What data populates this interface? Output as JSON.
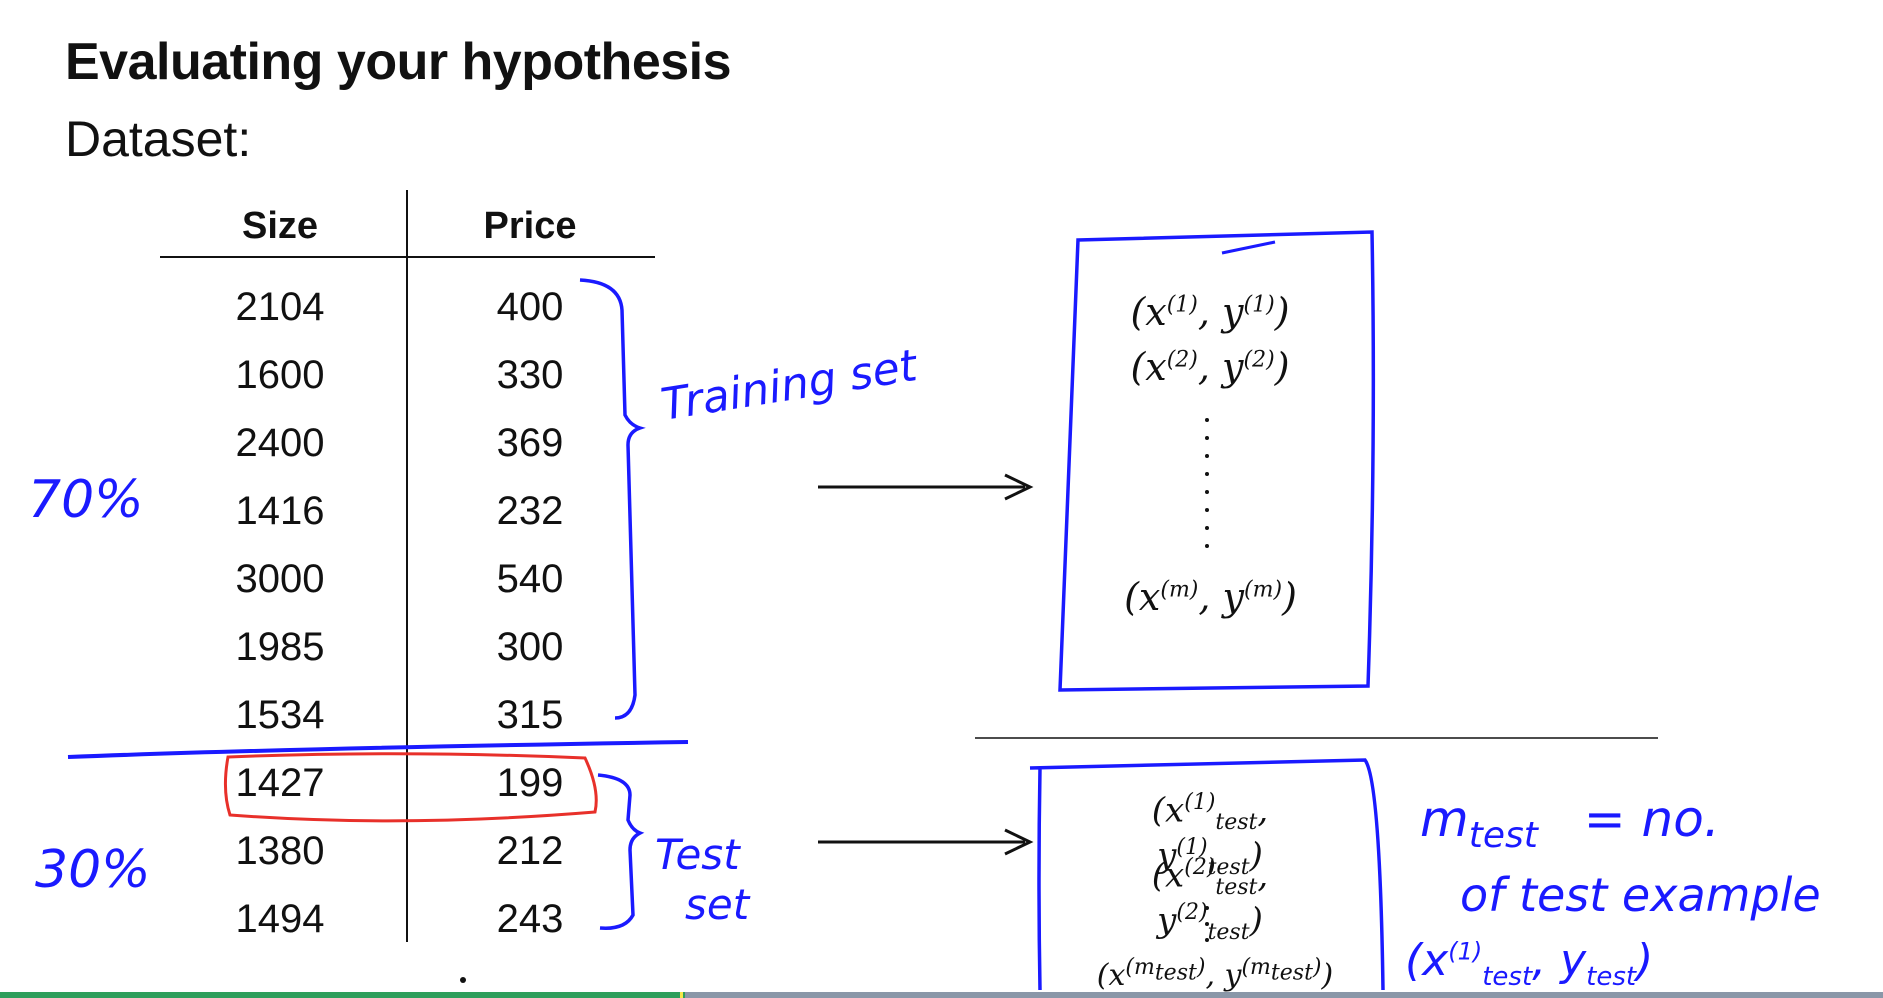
{
  "slide": {
    "title": "Evaluating your hypothesis",
    "subtitle": "Dataset:"
  },
  "table": {
    "headers": [
      "Size",
      "Price"
    ],
    "rows": [
      [
        "2104",
        "400"
      ],
      [
        "1600",
        "330"
      ],
      [
        "2400",
        "369"
      ],
      [
        "1416",
        "232"
      ],
      [
        "3000",
        "540"
      ],
      [
        "1985",
        "300"
      ],
      [
        "1534",
        "315"
      ],
      [
        "1427",
        "199"
      ],
      [
        "1380",
        "212"
      ],
      [
        "1494",
        "243"
      ]
    ]
  },
  "annotations": {
    "training_label": "Training set",
    "test_label_1": "Test",
    "test_label_2": "set",
    "pct_train": "70%",
    "pct_test": "30%",
    "m_test_def_1": "m",
    "m_test_def_sub": "test",
    "m_test_def_2": "= no.",
    "m_test_def_3": "of test example",
    "m_test_pair": "(x",
    "m_test_pair_sup": "(1)",
    "m_test_pair_sub": "test",
    "m_test_pair_2": ", y",
    "m_test_pair_sub2": "test",
    "m_test_pair_3": ")"
  },
  "train_box": {
    "line1_a": "(x",
    "line1_sup1": "(1)",
    "line1_b": ", y",
    "line1_sup2": "(1)",
    "line1_c": ")",
    "line2_a": "(x",
    "line2_sup1": "(2)",
    "line2_b": ", y",
    "line2_sup2": "(2)",
    "line2_c": ")",
    "linem_a": "(x",
    "linem_sup1": "(m)",
    "linem_b": ", y",
    "linem_sup2": "(m)",
    "linem_c": ")"
  },
  "test_box": {
    "line1_sup": "(1)",
    "line1_sub": "test",
    "line2_sup": "(2)",
    "line2_sub": "test",
    "linem_sup": "(m",
    "linem_sup_sub": "test",
    "linem_sup_end": ")"
  },
  "colors": {
    "ink": "#1a1aff",
    "highlight": "#e8302a",
    "progress_fill": "#2e9e5b",
    "progress_track": "#8a97a8"
  },
  "progress": {
    "fraction": 0.364
  }
}
